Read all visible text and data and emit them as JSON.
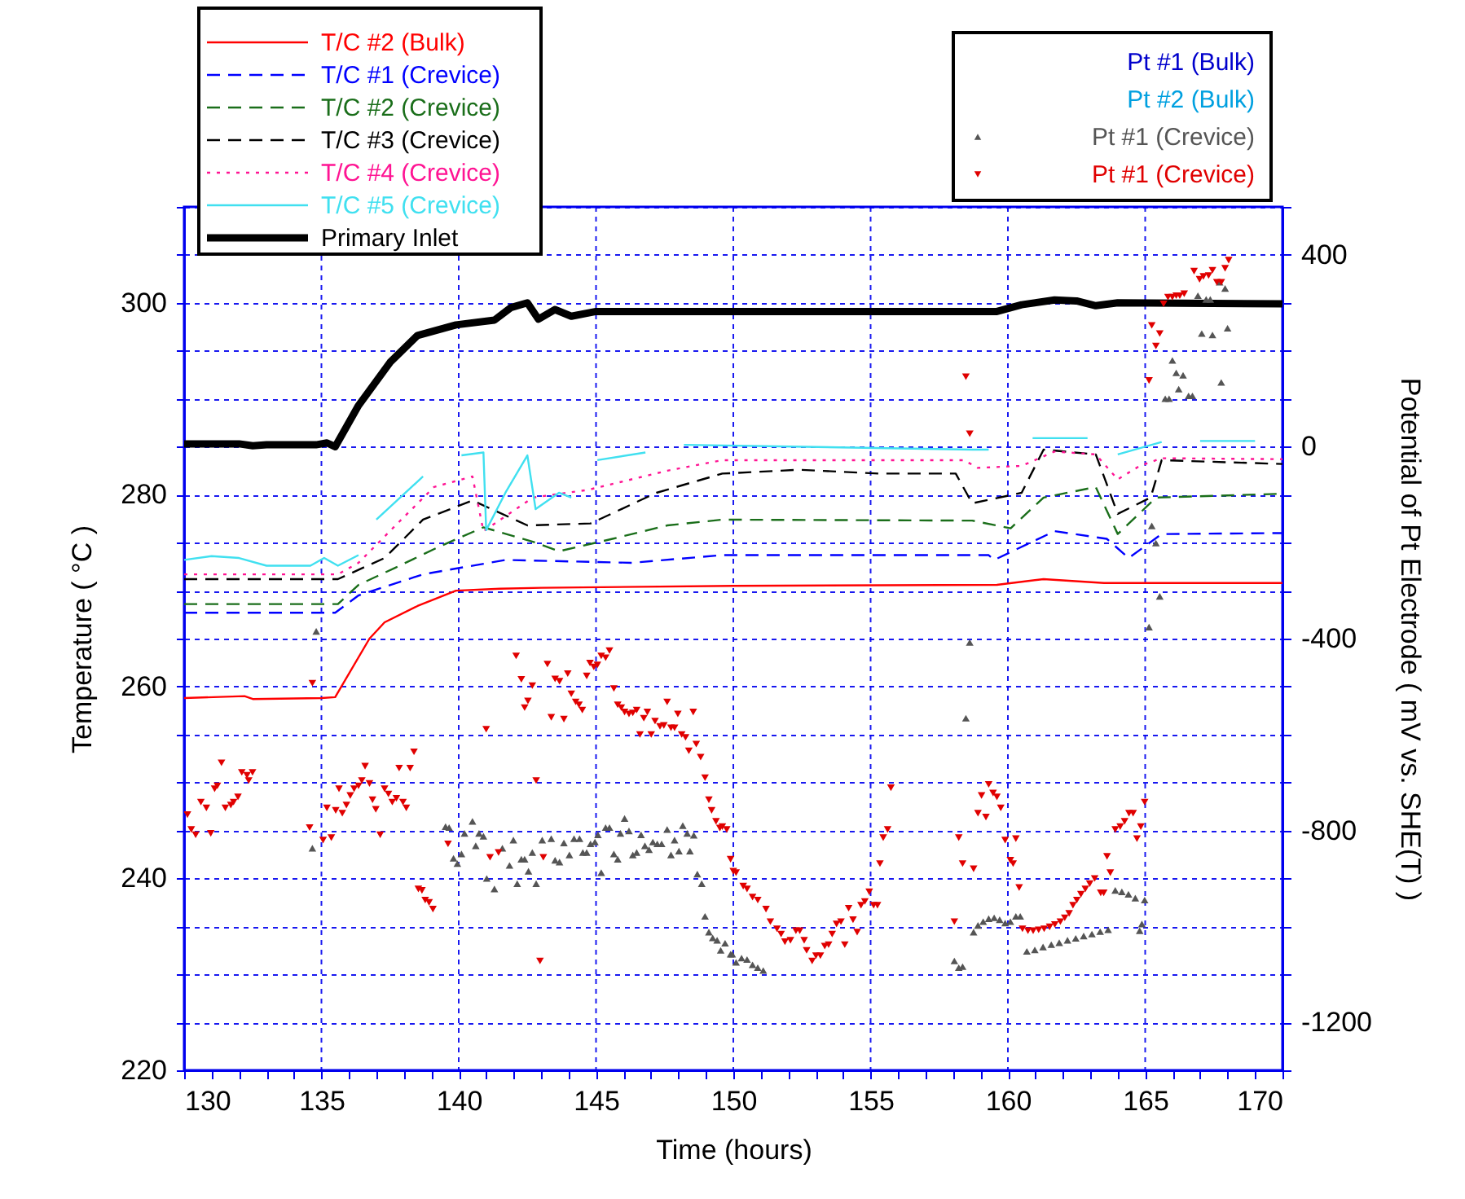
{
  "chart_data": {
    "type": "line",
    "xlabel": "Time (hours)",
    "ylabel": "Temperature ( °C )",
    "y2label": "Potential of Pt Electrode ( mV vs. SHE(T) )",
    "xlim": [
      130,
      170
    ],
    "ylim": [
      220,
      310
    ],
    "y2lim": [
      -1300,
      500
    ],
    "xticks": [
      130,
      {
        "value": 131,
        "label": null
      },
      {
        "value": 132,
        "label": null
      },
      {
        "value": 133,
        "label": null
      },
      {
        "value": 134,
        "label": null
      },
      135,
      {
        "value": 136,
        "label": null
      },
      {
        "value": 137,
        "label": null
      },
      {
        "value": 138,
        "label": null
      },
      {
        "value": 139,
        "label": null
      },
      140,
      {
        "value": 141,
        "label": null
      },
      {
        "value": 142,
        "label": null
      },
      {
        "value": 143,
        "label": null
      },
      {
        "value": 144,
        "label": null
      },
      145,
      {
        "value": 146,
        "label": null
      },
      {
        "value": 147,
        "label": null
      },
      {
        "value": 148,
        "label": null
      },
      {
        "value": 149,
        "label": null
      },
      150,
      {
        "value": 151,
        "label": null
      },
      {
        "value": 152,
        "label": null
      },
      {
        "value": 153,
        "label": null
      },
      {
        "value": 154,
        "label": null
      },
      155,
      {
        "value": 156,
        "label": null
      },
      {
        "value": 157,
        "label": null
      },
      {
        "value": 158,
        "label": null
      },
      {
        "value": 159,
        "label": null
      },
      160,
      {
        "value": 161,
        "label": null
      },
      {
        "value": 162,
        "label": null
      },
      {
        "value": 163,
        "label": null
      },
      {
        "value": 164,
        "label": null
      },
      165,
      {
        "value": 166,
        "label": null
      },
      {
        "value": 167,
        "label": null
      },
      {
        "value": 168,
        "label": null
      },
      {
        "value": 169,
        "label": null
      },
      170
    ],
    "yticks": [
      220,
      {
        "value": 225,
        "label": null
      },
      {
        "value": 230,
        "label": null
      },
      {
        "value": 235,
        "label": null
      },
      240,
      {
        "value": 245,
        "label": null
      },
      {
        "value": 250,
        "label": null
      },
      {
        "value": 255,
        "label": null
      },
      260,
      {
        "value": 265,
        "label": null
      },
      {
        "value": 270,
        "label": null
      },
      {
        "value": 275,
        "label": null
      },
      280,
      {
        "value": 285,
        "label": null
      },
      {
        "value": 290,
        "label": null
      },
      {
        "value": 295,
        "label": null
      },
      300,
      {
        "value": 305,
        "label": null
      },
      {
        "value": 310,
        "label": null
      }
    ],
    "y2ticks": [
      {
        "value": -1300,
        "label": null
      },
      -1200,
      {
        "value": -1100,
        "label": null
      },
      {
        "value": -1000,
        "label": null
      },
      {
        "value": -900,
        "label": null
      },
      -800,
      {
        "value": -700,
        "label": null
      },
      {
        "value": -600,
        "label": null
      },
      {
        "value": -500,
        "label": null
      },
      -400,
      {
        "value": -300,
        "label": null
      },
      {
        "value": -200,
        "label": null
      },
      {
        "value": -100,
        "label": null
      },
      0,
      {
        "value": 100,
        "label": null
      },
      {
        "value": 200,
        "label": null
      },
      {
        "value": 300,
        "label": null
      },
      400,
      {
        "value": 500,
        "label": null
      }
    ],
    "grid": true,
    "legend": "top",
    "series": [
      {
        "name": "T/C #2 (Bulk)",
        "color": "#ff0000",
        "line_style": "solid",
        "x": [
          130,
          132.2,
          132.5,
          135.0,
          135.5,
          136.75,
          137.3,
          138.5,
          139.9,
          141.5,
          143,
          150,
          159.6,
          161.3,
          163.5,
          170
        ],
        "values": [
          258.8,
          259.0,
          258.7,
          258.8,
          258.9,
          265.0,
          266.7,
          268.4,
          270.0,
          270.2,
          270.3,
          270.5,
          270.6,
          271.2,
          270.8,
          270.8
        ]
      },
      {
        "name": "T/C #1 (Crevice)",
        "color": "#0000ff",
        "line_style": "dashed",
        "x": [
          130,
          135.5,
          136.35,
          138.7,
          141.7,
          146.3,
          149.6,
          159.3,
          159.5,
          161.7,
          163.6,
          164.4,
          165.6,
          170
        ],
        "values": [
          267.7,
          267.7,
          269.5,
          271.7,
          273.2,
          272.9,
          273.7,
          273.7,
          273.2,
          276.2,
          275.4,
          273.4,
          275.9,
          276.0
        ]
      },
      {
        "name": "T/C #2 (Crevice)",
        "color": "#1a6e1a",
        "line_style": "dashed",
        "x": [
          130,
          135.6,
          136.35,
          137.7,
          139.3,
          140.9,
          142.7,
          143.65,
          145.6,
          147.6,
          149.6,
          158.7,
          160.1,
          161.3,
          163.2,
          164.0,
          165.4,
          170
        ],
        "values": [
          268.6,
          268.6,
          270.6,
          272.4,
          274.6,
          276.6,
          275.1,
          274.1,
          275.4,
          276.8,
          277.4,
          277.3,
          276.5,
          279.7,
          280.8,
          275.9,
          279.7,
          280.1
        ]
      },
      {
        "name": "T/C #3 (Crevice)",
        "color": "#000000",
        "line_style": "dashed",
        "x": [
          130,
          135.6,
          137.3,
          138.7,
          140.5,
          142.5,
          144.8,
          147.2,
          149.6,
          152.4,
          155.3,
          158.1,
          158.7,
          160.5,
          161.3,
          163.2,
          164.0,
          165.2,
          165.6,
          170
        ],
        "values": [
          271.2,
          271.2,
          273.4,
          277.4,
          279.4,
          276.8,
          277.0,
          280.2,
          282.2,
          282.6,
          282.2,
          282.2,
          279.1,
          280.2,
          284.7,
          284.2,
          278.0,
          279.7,
          283.6,
          283.2
        ]
      },
      {
        "name": "T/C #4 (Crevice)",
        "color": "#ff1493",
        "line_style": "dotted",
        "x": [
          130,
          135.6,
          136.35,
          137.7,
          139.1,
          140.5,
          140.9,
          142.7,
          144.7,
          147.6,
          149.6,
          158.4,
          158.9,
          160.5,
          161.7,
          163.2,
          164.0,
          164.8,
          165.6,
          170
        ],
        "values": [
          271.7,
          271.7,
          272.9,
          276.8,
          280.8,
          281.9,
          276.2,
          279.7,
          280.5,
          282.5,
          283.6,
          283.6,
          282.8,
          283.0,
          284.5,
          284.2,
          281.6,
          283.0,
          283.8,
          283.7
        ]
      },
      {
        "name": "T/C #5 (Crevice)",
        "color": "#40e0f0",
        "line_style": "solid",
        "x": [
          130,
          131,
          132,
          133,
          134.6,
          135.1,
          135.6,
          136.35,
          136.6,
          137.0,
          138.7,
          139.5,
          140.1,
          140.9,
          141.0,
          141.7,
          142.5,
          142.8,
          143.65,
          144.1,
          144.6,
          145.05,
          146.8,
          147.5,
          148.2,
          158.7,
          159.3,
          160.0,
          160.9,
          162.9,
          163.5,
          164.0,
          165.6,
          166.3,
          167.0,
          169.0
        ],
        "values": [
          273.2,
          273.6,
          273.4,
          272.6,
          272.6,
          273.4,
          272.6,
          273.7,
          null,
          277.4,
          281.9,
          null,
          284.1,
          284.4,
          276.3,
          280.2,
          284.1,
          278.5,
          280.2,
          279.7,
          null,
          283.6,
          284.4,
          null,
          285.2,
          284.7,
          284.7,
          null,
          285.9,
          285.9,
          null,
          284.2,
          285.5,
          null,
          285.6,
          285.6
        ]
      },
      {
        "name": "Primary Inlet",
        "color": "#000000",
        "line_style": "solid",
        "x": [
          130,
          132,
          132.5,
          133,
          134.8,
          135.2,
          135.5,
          136.35,
          137.5,
          138.5,
          139.9,
          141.3,
          141.9,
          142.5,
          142.9,
          143.5,
          144.1,
          145,
          150,
          155,
          159.6,
          160.5,
          161.7,
          162.5,
          163.2,
          164,
          170
        ],
        "values": [
          285.3,
          285.3,
          285.1,
          285.2,
          285.2,
          285.4,
          285.0,
          289.3,
          293.8,
          296.6,
          297.7,
          298.2,
          299.5,
          300.0,
          298.3,
          299.3,
          298.6,
          299.1,
          299.1,
          299.1,
          299.1,
          299.8,
          300.3,
          300.2,
          299.7,
          300.0,
          299.9
        ]
      },
      {
        "name": "Pt #1 (Bulk)",
        "color": "#0000cc",
        "type": "scatter"
      },
      {
        "name": "Pt #2 (Bulk)",
        "color": "#00a0e0",
        "type": "scatter"
      },
      {
        "name": "Pt #1 (Crevice)",
        "color": "#555555",
        "type": "scatter",
        "axis": "y2",
        "marker": "triangle",
        "x": [
          134.81,
          134.67,
          139.52,
          139.65,
          139.81,
          139.95,
          140.1,
          140.21,
          140.5,
          140.62,
          140.74,
          140.9,
          141.02,
          141.3,
          141.59,
          141.85,
          141.99,
          142.13,
          142.28,
          142.4,
          142.54,
          142.68,
          142.82,
          143.04,
          143.37,
          143.51,
          143.67,
          143.83,
          144.03,
          144.2,
          144.4,
          144.52,
          144.66,
          144.8,
          144.96,
          145.07,
          145.19,
          145.35,
          145.49,
          145.65,
          145.79,
          145.89,
          146.04,
          146.2,
          146.34,
          146.48,
          146.64,
          146.78,
          146.93,
          147.07,
          147.23,
          147.39,
          147.59,
          147.73,
          147.86,
          148.02,
          148.16,
          148.32,
          148.42,
          148.56,
          148.69,
          148.85,
          148.97,
          149.11,
          149.25,
          149.41,
          149.54,
          149.7,
          149.9,
          149.96,
          150.1,
          150.3,
          150.5,
          150.7,
          150.89,
          151.09,
          158.05,
          158.21,
          158.35,
          158.47,
          158.61,
          158.75,
          158.91,
          159.1,
          159.3,
          159.5,
          159.7,
          159.9,
          160.09,
          160.29,
          160.45,
          160.69,
          160.98,
          161.28,
          161.58,
          161.87,
          162.17,
          162.47,
          162.76,
          163.06,
          163.36,
          163.65,
          163.91,
          164.15,
          164.39,
          164.64,
          164.98,
          164.8,
          164.88,
          165.14,
          165.24,
          165.39,
          165.53,
          165.99,
          166.13,
          166.38,
          166.22,
          165.73,
          165.87,
          166.58,
          166.72,
          167.06,
          167.45,
          168.0,
          167.77,
          166.92,
          167.22,
          167.37,
          167.71,
          167.91
        ],
        "values": [
          -385,
          -837,
          -792,
          -794,
          -858,
          -869,
          -849,
          -806,
          -781,
          -832,
          -806,
          -812,
          -900,
          -922,
          -837,
          -873,
          -820,
          -911,
          -860,
          -860,
          -885,
          -846,
          -911,
          -820,
          -817,
          -862,
          -866,
          -826,
          -851,
          -817,
          -817,
          -846,
          -846,
          -828,
          -824,
          -809,
          -888,
          -794,
          -794,
          -849,
          -860,
          -806,
          -775,
          -801,
          -851,
          -846,
          -809,
          -832,
          -840,
          -824,
          -828,
          -828,
          -798,
          -851,
          -820,
          -843,
          -790,
          -806,
          -843,
          -810,
          -891,
          -911,
          -979,
          -1012,
          -1024,
          -1029,
          -1050,
          -1035,
          -1058,
          -1058,
          -1075,
          -1066,
          -1069,
          -1080,
          -1086,
          -1092,
          -1072,
          -1086,
          -1084,
          -566,
          -408,
          -1012,
          -998,
          -990,
          -984,
          -982,
          -986,
          -993,
          -990,
          -979,
          -979,
          -1052,
          -1049,
          -1043,
          -1038,
          -1034,
          -1029,
          -1025,
          -1020,
          -1016,
          -1011,
          -1007,
          -925,
          -928,
          -933,
          -941,
          -945,
          -1009,
          -995,
          -376,
          -165,
          -201,
          -312,
          180,
          154,
          149,
          120,
          100,
          100,
          106,
          106,
          236,
          233,
          247,
          134,
          315,
          307,
          307,
          343,
          330
        ]
      },
      {
        "name": "Pt #1 (Crevice)",
        "color": "#e00000",
        "type": "scatter",
        "axis": "y2",
        "marker": "triangle-down",
        "x": [
          130.12,
          130.26,
          130.42,
          130.61,
          130.81,
          130.97,
          131.11,
          131.21,
          131.36,
          131.5,
          131.7,
          131.8,
          131.96,
          132.1,
          132.29,
          132.35,
          132.49,
          134.57,
          134.67,
          135.06,
          135.2,
          135.36,
          135.52,
          135.64,
          135.76,
          135.91,
          136.05,
          136.19,
          136.35,
          136.47,
          136.59,
          136.75,
          136.86,
          136.98,
          137.14,
          137.3,
          137.44,
          137.58,
          137.73,
          137.83,
          137.97,
          138.09,
          138.23,
          138.37,
          138.53,
          138.66,
          138.78,
          138.92,
          139.06,
          139.61,
          141.0,
          141.14,
          141.45,
          142.09,
          142.28,
          142.4,
          142.52,
          142.68,
          142.82,
          142.96,
          143.08,
          143.23,
          143.37,
          143.51,
          143.67,
          143.83,
          143.97,
          144.1,
          144.26,
          144.38,
          144.5,
          144.66,
          144.78,
          144.92,
          145.05,
          145.19,
          145.35,
          145.49,
          145.65,
          145.79,
          145.92,
          146.04,
          146.2,
          146.34,
          146.48,
          146.6,
          146.74,
          146.87,
          147.01,
          147.15,
          147.33,
          147.47,
          147.59,
          147.73,
          147.86,
          147.98,
          148.12,
          148.26,
          148.38,
          148.54,
          148.65,
          148.81,
          148.97,
          149.11,
          149.21,
          149.37,
          149.51,
          149.6,
          149.76,
          149.9,
          150.0,
          150.1,
          150.36,
          150.5,
          150.7,
          150.89,
          151.19,
          151.35,
          151.59,
          151.74,
          151.88,
          152.08,
          152.28,
          152.42,
          152.58,
          152.67,
          152.87,
          153.01,
          153.17,
          153.33,
          153.47,
          153.6,
          153.76,
          153.92,
          154.06,
          154.2,
          154.36,
          154.51,
          154.65,
          154.79,
          154.95,
          155.11,
          155.25,
          155.34,
          155.46,
          155.62,
          155.74,
          158.05,
          158.21,
          158.35,
          158.75,
          158.91,
          159.04,
          159.2,
          159.3,
          159.46,
          159.6,
          159.74,
          159.9,
          160.09,
          160.19,
          160.29,
          160.41,
          160.53,
          160.73,
          160.92,
          161.12,
          161.32,
          161.52,
          161.71,
          161.91,
          162.07,
          162.23,
          162.37,
          162.51,
          162.66,
          162.82,
          162.98,
          163.16,
          163.38,
          163.49,
          163.61,
          163.73,
          163.91,
          164.09,
          164.25,
          164.41,
          164.56,
          164.7,
          164.84,
          164.98,
          158.47,
          158.61,
          165.14,
          165.24,
          165.39,
          165.53,
          165.67,
          165.83,
          165.99,
          166.13,
          166.26,
          166.42,
          166.78,
          166.98,
          167.12,
          167.31,
          167.45,
          167.61,
          167.77,
          167.91,
          168.04
        ],
        "values": [
          -767,
          -798,
          -809,
          -741,
          -753,
          -806,
          -713,
          -707,
          -659,
          -753,
          -747,
          -741,
          -730,
          -679,
          -685,
          -696,
          -679,
          -794,
          -493,
          -820,
          -753,
          -815,
          -758,
          -713,
          -764,
          -747,
          -727,
          -713,
          -707,
          -696,
          -666,
          -702,
          -736,
          -756,
          -809,
          -713,
          -724,
          -741,
          -733,
          -670,
          -741,
          -753,
          -670,
          -636,
          -922,
          -925,
          -945,
          -950,
          -964,
          -828,
          -589,
          -856,
          -846,
          -436,
          -485,
          -544,
          -530,
          -498,
          -696,
          -1072,
          -856,
          -453,
          -564,
          -484,
          -489,
          -568,
          -473,
          -515,
          -532,
          -538,
          -549,
          -478,
          -451,
          -459,
          -455,
          -436,
          -440,
          -425,
          -504,
          -538,
          -544,
          -553,
          -557,
          -555,
          -549,
          -600,
          -566,
          -553,
          -600,
          -572,
          -583,
          -581,
          -532,
          -586,
          -586,
          -557,
          -600,
          -606,
          -634,
          -553,
          -620,
          -647,
          -690,
          -736,
          -758,
          -781,
          -795,
          -792,
          -798,
          -860,
          -885,
          -888,
          -916,
          -922,
          -939,
          -945,
          -964,
          -990,
          -1005,
          -1016,
          -1032,
          -1029,
          -1009,
          -1009,
          -1029,
          -1050,
          -1072,
          -1061,
          -1061,
          -1041,
          -1038,
          -1016,
          -995,
          -990,
          -1038,
          -962,
          -986,
          -1012,
          -956,
          -948,
          -928,
          -956,
          -956,
          -869,
          -815,
          -798,
          -711,
          -990,
          -815,
          -869,
          -880,
          -764,
          -727,
          -772,
          -704,
          -722,
          -730,
          -753,
          -820,
          -862,
          -869,
          -817,
          -919,
          -1005,
          -1009,
          -1009,
          -1007,
          -1005,
          -1001,
          -996,
          -990,
          -982,
          -973,
          -956,
          -945,
          -933,
          -922,
          -911,
          -900,
          -930,
          -930,
          -854,
          -888,
          -798,
          -792,
          -781,
          -764,
          -764,
          -817,
          -792,
          -741,
          146,
          27,
          138,
          253,
          210,
          236,
          298,
          312,
          312,
          315,
          315,
          319,
          366,
          349,
          355,
          357,
          368,
          343,
          343,
          372,
          389
        ]
      }
    ]
  }
}
